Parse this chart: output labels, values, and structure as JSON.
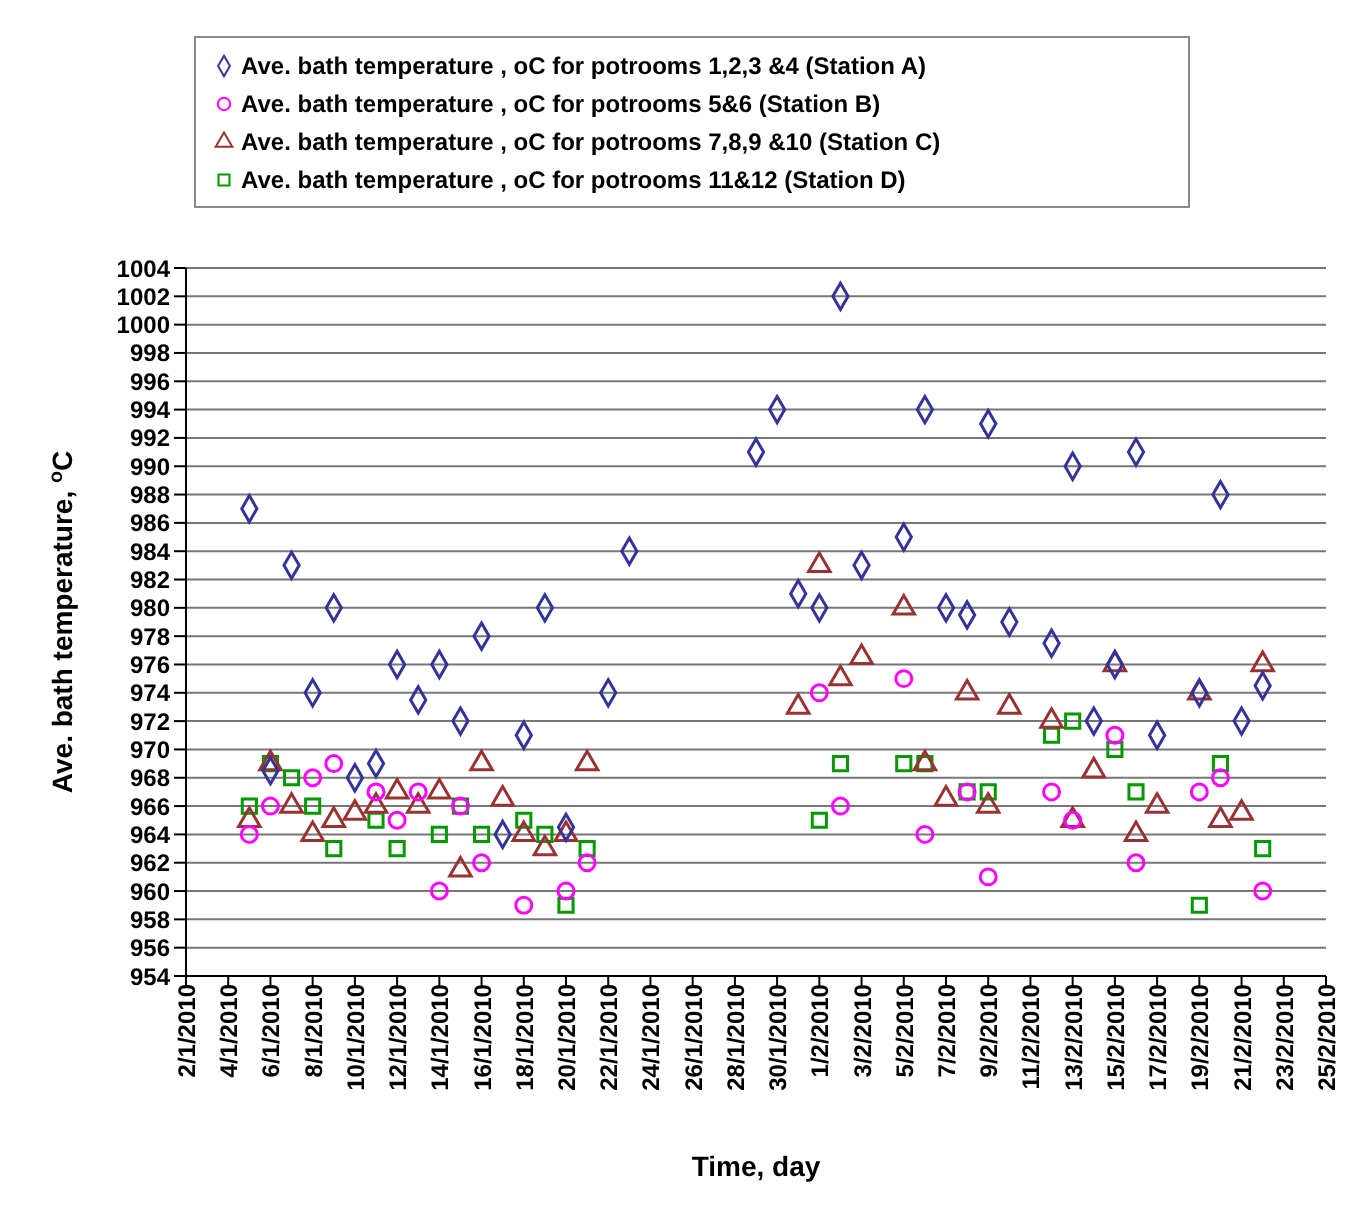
{
  "chart_data": {
    "type": "scatter",
    "xlabel": "Time, day",
    "ylabel": "Ave. bath temperature, $^{o}$C",
    "legend": "top",
    "grid": "y",
    "xlim": [
      "2010-01-02",
      "2010-02-25"
    ],
    "xticks": [
      {
        "value": "2010-01-02",
        "label": "2/1/2010"
      },
      {
        "value": "2010-01-04",
        "label": "4/1/2010"
      },
      {
        "value": "2010-01-06",
        "label": "6/1/2010"
      },
      {
        "value": "2010-01-08",
        "label": "8/1/2010"
      },
      {
        "value": "2010-01-10",
        "label": "10/1/2010"
      },
      {
        "value": "2010-01-12",
        "label": "12/1/2010"
      },
      {
        "value": "2010-01-14",
        "label": "14/1/2010"
      },
      {
        "value": "2010-01-16",
        "label": "16/1/2010"
      },
      {
        "value": "2010-01-18",
        "label": "18/1/2010"
      },
      {
        "value": "2010-01-20",
        "label": "20/1/2010"
      },
      {
        "value": "2010-01-22",
        "label": "22/1/2010"
      },
      {
        "value": "2010-01-24",
        "label": "24/1/2010"
      },
      {
        "value": "2010-01-26",
        "label": "26/1/2010"
      },
      {
        "value": "2010-01-28",
        "label": "28/1/2010"
      },
      {
        "value": "2010-01-30",
        "label": "30/1/2010"
      },
      {
        "value": "2010-02-01",
        "label": "1/2/2010"
      },
      {
        "value": "2010-02-03",
        "label": "3/2/2010"
      },
      {
        "value": "2010-02-05",
        "label": "5/2/2010"
      },
      {
        "value": "2010-02-07",
        "label": "7/2/2010"
      },
      {
        "value": "2010-02-09",
        "label": "9/2/2010"
      },
      {
        "value": "2010-02-11",
        "label": "11/2/2010"
      },
      {
        "value": "2010-02-13",
        "label": "13/2/2010"
      },
      {
        "value": "2010-02-15",
        "label": "15/2/2010"
      },
      {
        "value": "2010-02-17",
        "label": "17/2/2010"
      },
      {
        "value": "2010-02-19",
        "label": "19/2/2010"
      },
      {
        "value": "2010-02-21",
        "label": "21/2/2010"
      },
      {
        "value": "2010-02-23",
        "label": "23/2/2010"
      },
      {
        "value": "2010-02-25",
        "label": "25/2/2010"
      }
    ],
    "ylim": [
      954,
      1004
    ],
    "yticks": [
      954,
      956,
      958,
      960,
      962,
      964,
      966,
      968,
      970,
      972,
      974,
      976,
      978,
      980,
      982,
      984,
      986,
      988,
      990,
      992,
      994,
      996,
      998,
      1000,
      1002,
      1004
    ],
    "series": [
      {
        "name": "Ave. bath temperature , oC for potrooms 1,2,3 &4 (Station A)",
        "color": "#333399",
        "marker": "diamond",
        "x": [
          "2010-01-05",
          "2010-01-06",
          "2010-01-07",
          "2010-01-08",
          "2010-01-09",
          "2010-01-10",
          "2010-01-11",
          "2010-01-12",
          "2010-01-13",
          "2010-01-14",
          "2010-01-15",
          "2010-01-16",
          "2010-01-17",
          "2010-01-18",
          "2010-01-19",
          "2010-01-20",
          "2010-01-22",
          "2010-01-23",
          "2010-01-29",
          "2010-01-30",
          "2010-01-31",
          "2010-02-01",
          "2010-02-02",
          "2010-02-03",
          "2010-02-05",
          "2010-02-06",
          "2010-02-07",
          "2010-02-08",
          "2010-02-09",
          "2010-02-10",
          "2010-02-12",
          "2010-02-13",
          "2010-02-14",
          "2010-02-15",
          "2010-02-16",
          "2010-02-17",
          "2010-02-19",
          "2010-02-20",
          "2010-02-21",
          "2010-02-22"
        ],
        "values": [
          987,
          968.5,
          983,
          974,
          980,
          968,
          969,
          976,
          973.5,
          976,
          972,
          978,
          964,
          971,
          980,
          964.5,
          974,
          984,
          991,
          994,
          981,
          980,
          1002,
          983,
          985,
          994,
          980,
          979.5,
          993,
          979,
          977.5,
          990,
          972,
          976,
          991,
          971,
          974,
          988,
          972,
          974.5
        ]
      },
      {
        "name": "Ave. bath temperature , oC for potrooms 5&6 (Station B)",
        "color": "#ff00ff",
        "marker": "circle",
        "x": [
          "2010-01-05",
          "2010-01-06",
          "2010-01-08",
          "2010-01-09",
          "2010-01-11",
          "2010-01-12",
          "2010-01-13",
          "2010-01-14",
          "2010-01-15",
          "2010-01-16",
          "2010-01-18",
          "2010-01-20",
          "2010-01-21",
          "2010-02-01",
          "2010-02-02",
          "2010-02-05",
          "2010-02-06",
          "2010-02-08",
          "2010-02-09",
          "2010-02-12",
          "2010-02-13",
          "2010-02-15",
          "2010-02-16",
          "2010-02-19",
          "2010-02-20",
          "2010-02-22"
        ],
        "values": [
          964,
          966,
          968,
          969,
          967,
          965,
          967,
          960,
          966,
          962,
          959,
          960,
          962,
          974,
          966,
          975,
          964,
          967,
          961,
          967,
          965,
          971,
          962,
          967,
          968,
          960
        ]
      },
      {
        "name": "Ave. bath temperature , oC for potrooms 7,8,9 &10 (Station C)",
        "color": "#993333",
        "marker": "triangle",
        "x": [
          "2010-01-05",
          "2010-01-06",
          "2010-01-07",
          "2010-01-08",
          "2010-01-09",
          "2010-01-10",
          "2010-01-11",
          "2010-01-12",
          "2010-01-13",
          "2010-01-14",
          "2010-01-15",
          "2010-01-16",
          "2010-01-17",
          "2010-01-18",
          "2010-01-19",
          "2010-01-20",
          "2010-01-21",
          "2010-01-31",
          "2010-02-01",
          "2010-02-02",
          "2010-02-03",
          "2010-02-05",
          "2010-02-06",
          "2010-02-07",
          "2010-02-08",
          "2010-02-09",
          "2010-02-10",
          "2010-02-12",
          "2010-02-13",
          "2010-02-14",
          "2010-02-15",
          "2010-02-16",
          "2010-02-17",
          "2010-02-19",
          "2010-02-20",
          "2010-02-21",
          "2010-02-22"
        ],
        "values": [
          965,
          969,
          966,
          964,
          965,
          965.5,
          966,
          967,
          966,
          967,
          961.5,
          969,
          966.5,
          964,
          963,
          964,
          969,
          973,
          983,
          975,
          976.5,
          980,
          969,
          966.5,
          974,
          966,
          973,
          972,
          965,
          968.5,
          976,
          964,
          966,
          974,
          965,
          965.5,
          976
        ]
      },
      {
        "name": "Ave. bath temperature , oC for potrooms 11&12 (Station D)",
        "color": "#009900",
        "marker": "square",
        "x": [
          "2010-01-05",
          "2010-01-06",
          "2010-01-07",
          "2010-01-08",
          "2010-01-09",
          "2010-01-11",
          "2010-01-12",
          "2010-01-14",
          "2010-01-15",
          "2010-01-16",
          "2010-01-18",
          "2010-01-19",
          "2010-01-20",
          "2010-01-21",
          "2010-02-01",
          "2010-02-02",
          "2010-02-05",
          "2010-02-06",
          "2010-02-08",
          "2010-02-09",
          "2010-02-12",
          "2010-02-13",
          "2010-02-15",
          "2010-02-16",
          "2010-02-19",
          "2010-02-20",
          "2010-02-22"
        ],
        "values": [
          966,
          969,
          968,
          966,
          963,
          965,
          963,
          964,
          966,
          964,
          965,
          964,
          959,
          963,
          965,
          969,
          969,
          969,
          967,
          967,
          971,
          972,
          970,
          967,
          959,
          969,
          963
        ]
      }
    ]
  }
}
